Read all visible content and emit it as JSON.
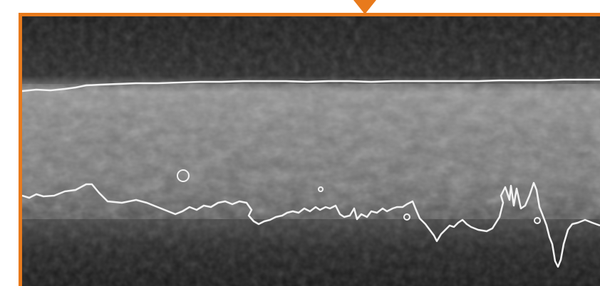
{
  "image": {
    "accent_color": "#e87a1c",
    "background_color": "#1a1a1a",
    "contour_color": "#ffffff",
    "icon_name": "tissue-layer-segmentation-image"
  }
}
